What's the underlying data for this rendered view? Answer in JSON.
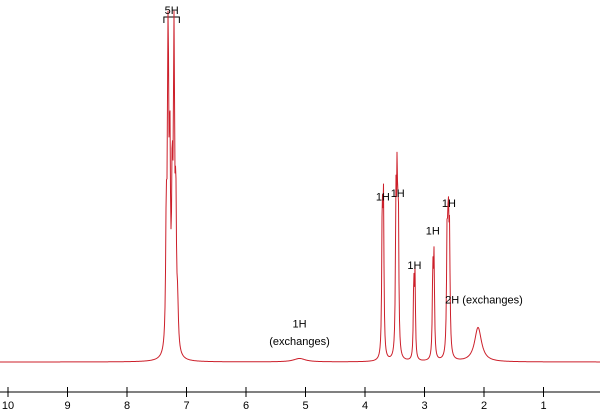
{
  "chart_data": {
    "type": "line",
    "xlim": [
      10,
      0
    ],
    "x_reversed": true,
    "ylim": [
      0,
      1
    ],
    "grid": false,
    "legend": "none",
    "color": "#cc1f2a",
    "x_ticks": [
      10,
      9,
      8,
      7,
      6,
      5,
      4,
      3,
      2,
      1
    ],
    "tick_labels": [
      "10",
      "9",
      "8",
      "7",
      "6",
      "5",
      "4",
      "3",
      "2",
      "1"
    ],
    "peaks": [
      {
        "center": 7.34,
        "height": 0.35,
        "width": 0.012
      },
      {
        "center": 7.31,
        "height": 0.98,
        "width": 0.012
      },
      {
        "center": 7.28,
        "height": 0.55,
        "width": 0.012
      },
      {
        "center": 7.24,
        "height": 0.45,
        "width": 0.012
      },
      {
        "center": 7.21,
        "height": 0.9,
        "width": 0.012
      },
      {
        "center": 7.18,
        "height": 0.4,
        "width": 0.012
      },
      {
        "center": 7.15,
        "height": 0.12,
        "width": 0.015
      },
      {
        "center": 5.1,
        "height": 0.01,
        "width": 0.12
      },
      {
        "center": 3.71,
        "height": 0.42,
        "width": 0.01
      },
      {
        "center": 3.69,
        "height": 0.44,
        "width": 0.01
      },
      {
        "center": 3.48,
        "height": 0.42,
        "width": 0.01
      },
      {
        "center": 3.46,
        "height": 0.46,
        "width": 0.01
      },
      {
        "center": 3.44,
        "height": 0.4,
        "width": 0.01
      },
      {
        "center": 3.18,
        "height": 0.23,
        "width": 0.009
      },
      {
        "center": 3.16,
        "height": 0.24,
        "width": 0.009
      },
      {
        "center": 2.86,
        "height": 0.25,
        "width": 0.01
      },
      {
        "center": 2.84,
        "height": 0.28,
        "width": 0.01
      },
      {
        "center": 2.62,
        "height": 0.33,
        "width": 0.011
      },
      {
        "center": 2.6,
        "height": 0.35,
        "width": 0.011
      },
      {
        "center": 2.58,
        "height": 0.32,
        "width": 0.011
      },
      {
        "center": 2.1,
        "height": 0.1,
        "width": 0.07
      }
    ],
    "annotations": [
      {
        "text": "5H",
        "x": 7.25,
        "y": 1.0,
        "bracket": [
          7.38,
          7.12
        ]
      },
      {
        "text": "1H",
        "x": 5.1,
        "y": 0.1
      },
      {
        "text": "(exchanges)",
        "x": 5.1,
        "y": 0.05
      },
      {
        "text": "1H",
        "x": 3.7,
        "y": 0.47
      },
      {
        "text": "1H",
        "x": 3.45,
        "y": 0.48
      },
      {
        "text": "1H",
        "x": 3.17,
        "y": 0.27
      },
      {
        "text": "1H",
        "x": 2.86,
        "y": 0.37
      },
      {
        "text": "1H",
        "x": 2.59,
        "y": 0.45
      },
      {
        "text": "2H (exchanges)",
        "x": 2.0,
        "y": 0.17
      }
    ]
  }
}
